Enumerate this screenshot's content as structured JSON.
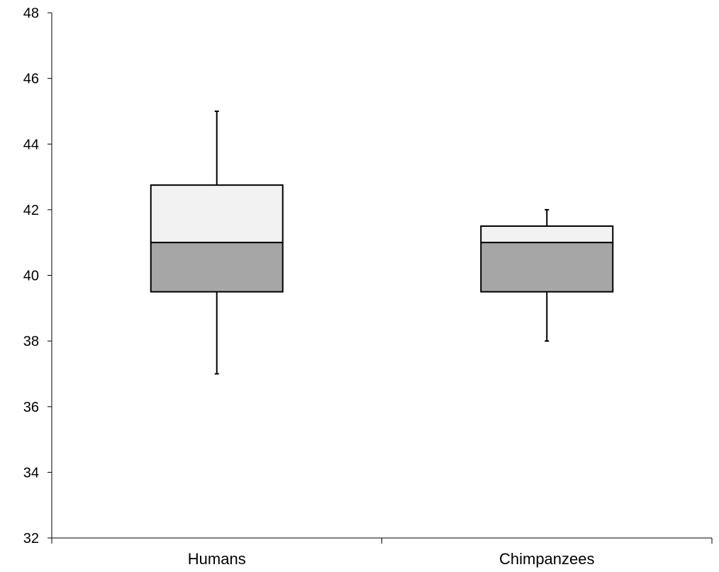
{
  "chart_data": {
    "type": "box",
    "title": "",
    "xlabel": "",
    "ylabel": "",
    "ylim": [
      32,
      48
    ],
    "yticks": [
      "32",
      "34",
      "36",
      "38",
      "40",
      "42",
      "44",
      "46",
      "48"
    ],
    "categories": [
      "Humans",
      "Chimpanzees"
    ],
    "boxes": [
      {
        "category": "Humans",
        "min": 37,
        "q1": 39.5,
        "median": 41,
        "q3": 42.75,
        "max": 45
      },
      {
        "category": "Chimpanzees",
        "min": 38,
        "q1": 39.5,
        "median": 41,
        "q3": 41.5,
        "max": 42
      }
    ],
    "colors": {
      "upper_box": "#f2f2f2",
      "lower_box": "#a6a6a6",
      "stroke": "#000000"
    },
    "grid": false,
    "legend": "none"
  }
}
